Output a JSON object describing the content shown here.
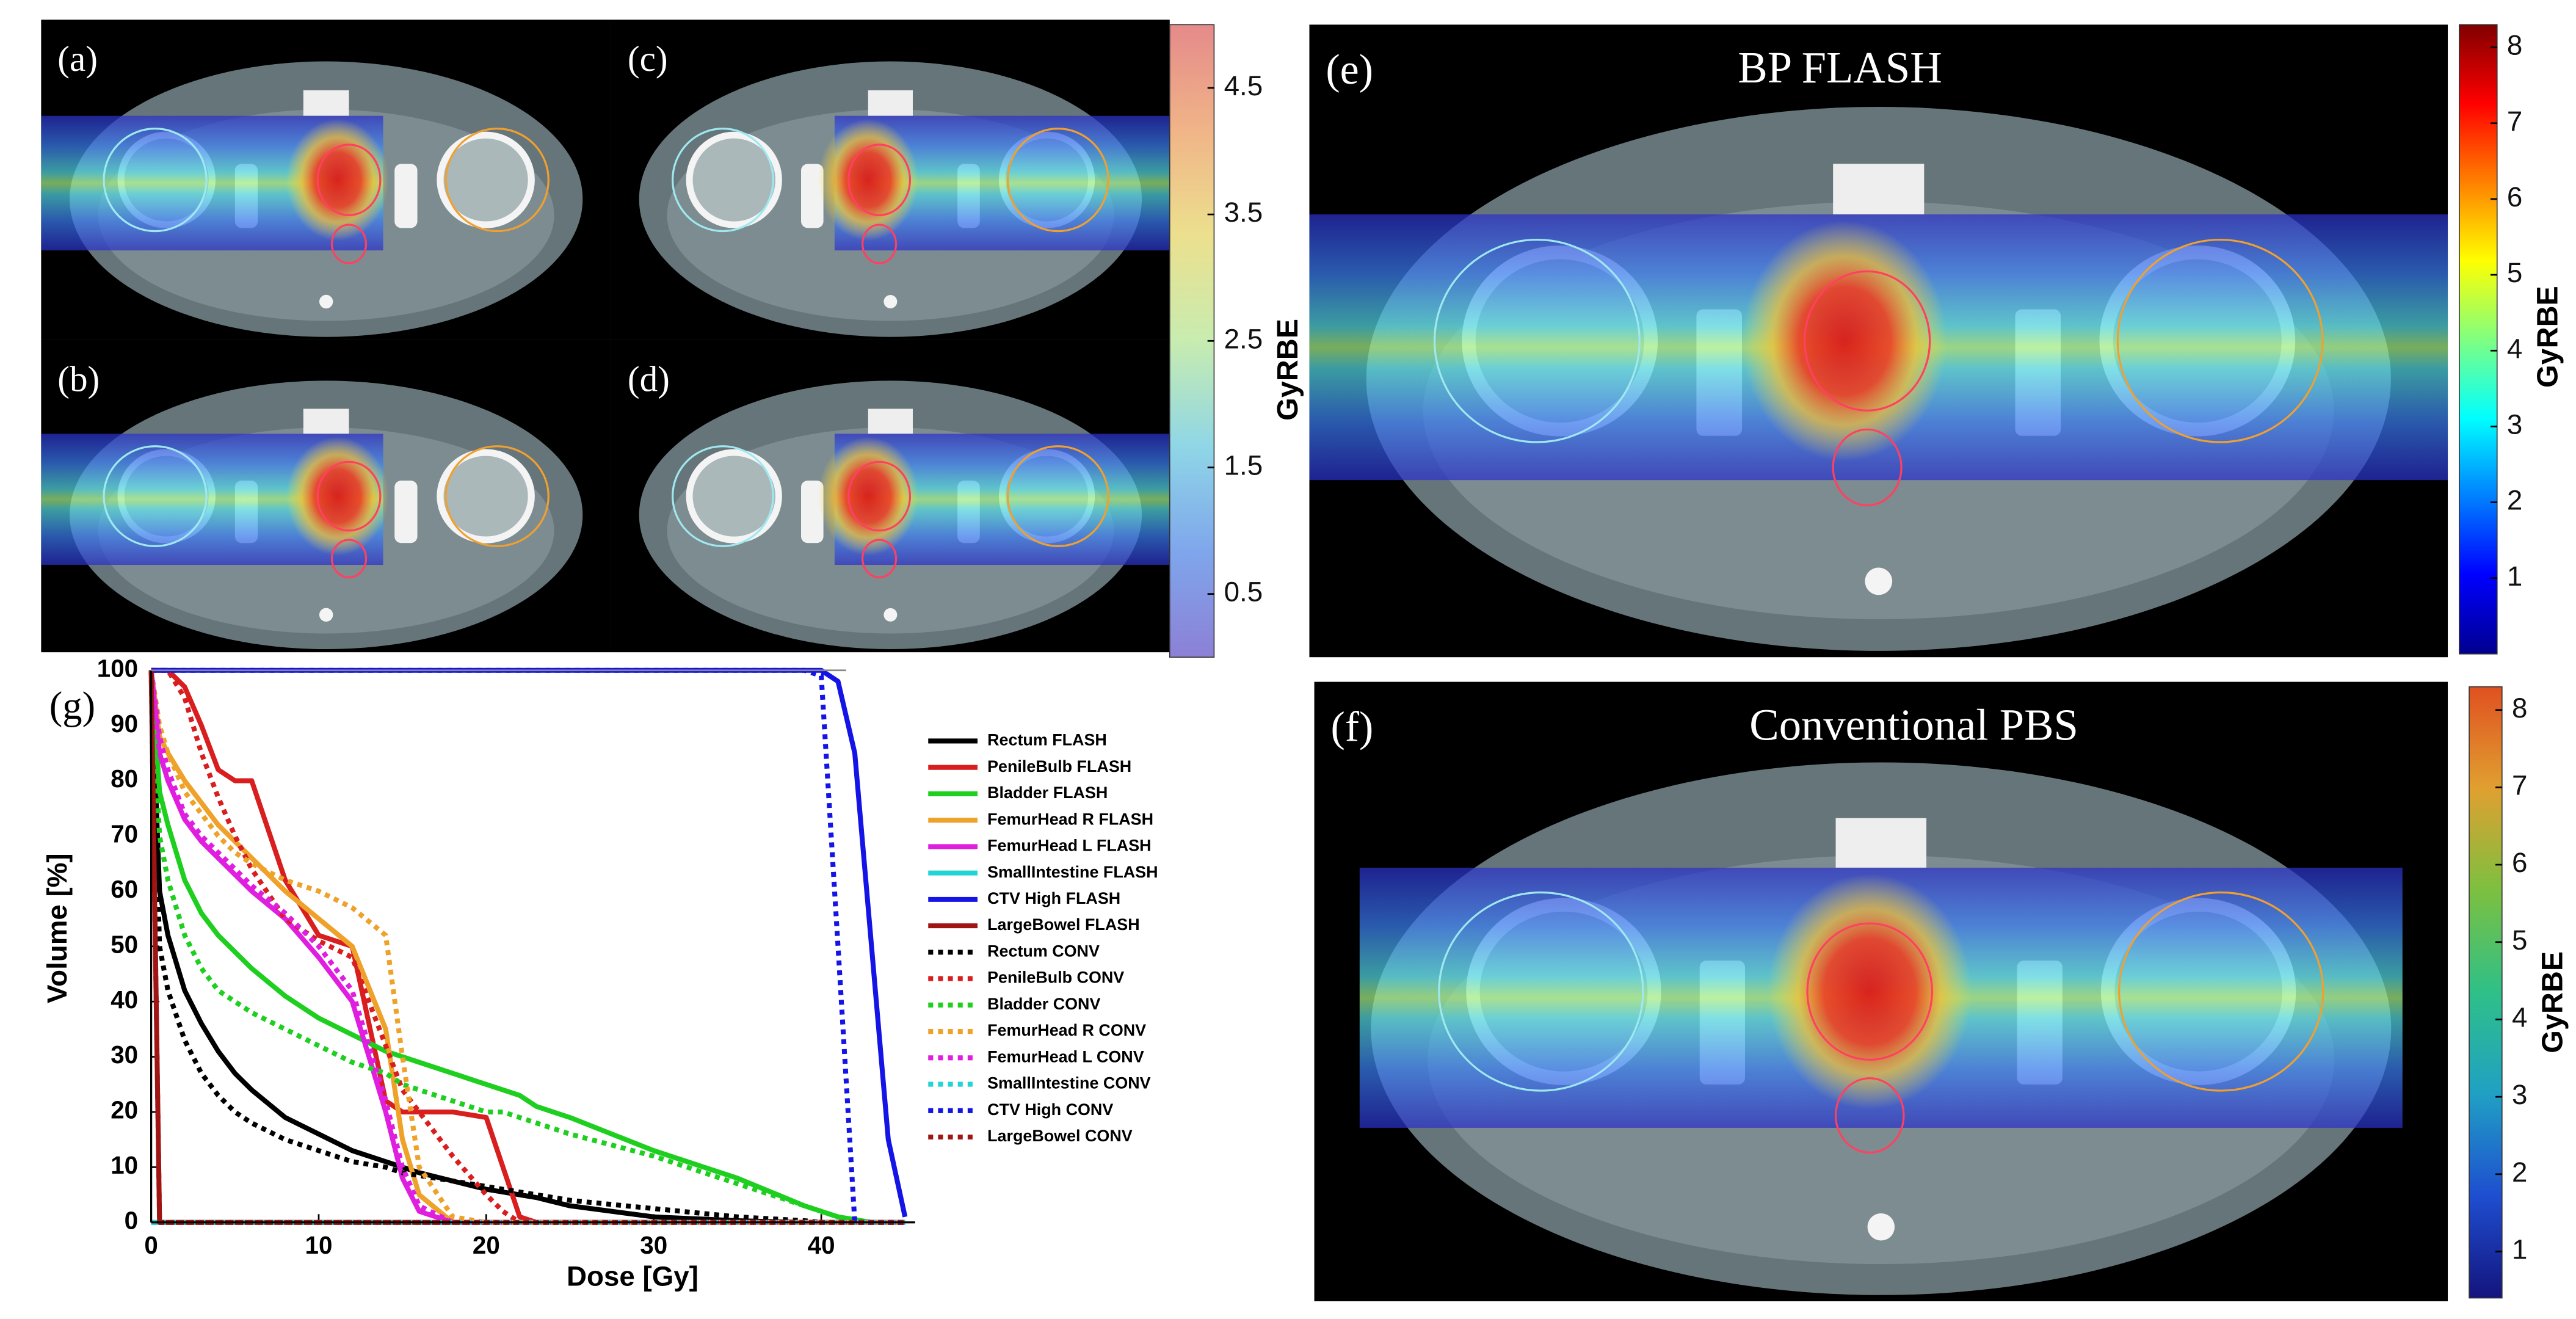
{
  "images": [
    {
      "label": "(a)"
    },
    {
      "label": "(b)"
    },
    {
      "label": "(c)"
    },
    {
      "label": "(d)"
    },
    {
      "label": "(e)",
      "title": "BP FLASH"
    },
    {
      "label": "(f)",
      "title": "Conventional PBS"
    }
  ],
  "chart_data": [
    {
      "type": "line",
      "panel_label": "(g)",
      "xlabel": "Dose [Gy]",
      "ylabel": "Volume [%]",
      "xlim": [
        0,
        45.6
      ],
      "ylim": [
        0,
        100
      ],
      "xticks": [
        0,
        10,
        20,
        30,
        40
      ],
      "yticks": [
        0,
        10,
        20,
        30,
        40,
        50,
        60,
        70,
        80,
        90,
        100
      ],
      "grid": false,
      "legend": "right",
      "x": [
        0,
        0.5,
        1,
        2,
        3,
        4,
        5,
        6,
        8,
        10,
        12,
        14,
        15,
        16,
        18,
        20,
        21,
        22,
        23,
        25,
        30,
        35,
        39,
        40,
        41,
        42,
        43,
        44,
        45
      ],
      "series": [
        {
          "name": "Rectum FLASH",
          "color": "#000000",
          "linestyle": "solid",
          "values": [
            100,
            60,
            52,
            42,
            36,
            31,
            27,
            24,
            19,
            16,
            13,
            11,
            10,
            9,
            7.5,
            6,
            5.5,
            5,
            4.5,
            3,
            1,
            0.3,
            0,
            0,
            0,
            0,
            0,
            0,
            0
          ]
        },
        {
          "name": "PenileBulb FLASH",
          "color": "#d81e1e",
          "linestyle": "solid",
          "values": [
            100,
            100,
            100,
            97,
            90,
            82,
            80,
            80,
            62,
            52,
            50,
            22,
            20,
            20,
            20,
            19,
            10,
            1,
            0,
            0,
            0,
            0,
            0,
            0,
            0,
            0,
            0,
            0,
            0
          ]
        },
        {
          "name": "Bladder FLASH",
          "color": "#1fcf1f",
          "linestyle": "solid",
          "values": [
            100,
            78,
            72,
            62,
            56,
            52,
            49,
            46,
            41,
            37,
            34,
            31,
            30,
            29,
            27,
            25,
            24,
            23,
            21,
            19,
            13,
            8,
            3,
            2,
            1,
            0.5,
            0,
            0,
            0
          ]
        },
        {
          "name": "FemurHead R FLASH",
          "color": "#eea22a",
          "linestyle": "solid",
          "values": [
            100,
            88,
            85,
            80,
            76,
            72,
            69,
            66,
            60,
            55,
            50,
            35,
            15,
            5,
            0,
            0,
            0,
            0,
            0,
            0,
            0,
            0,
            0,
            0,
            0,
            0,
            0,
            0,
            0
          ]
        },
        {
          "name": "FemurHead L FLASH",
          "color": "#e01ee0",
          "linestyle": "solid",
          "values": [
            100,
            85,
            80,
            73,
            69,
            66,
            63,
            60,
            55,
            48,
            40,
            20,
            8,
            2,
            0,
            0,
            0,
            0,
            0,
            0,
            0,
            0,
            0,
            0,
            0,
            0,
            0,
            0,
            0
          ]
        },
        {
          "name": "SmallIntestine FLASH",
          "color": "#22d4d4",
          "linestyle": "solid",
          "values": [
            0,
            0,
            0,
            0,
            0,
            0,
            0,
            0,
            0,
            0,
            0,
            0,
            0,
            0,
            0,
            0,
            0,
            0,
            0,
            0,
            0,
            0,
            0,
            0,
            0,
            0,
            0,
            0,
            0
          ]
        },
        {
          "name": "CTV High FLASH",
          "color": "#1414e6",
          "linestyle": "solid",
          "values": [
            100,
            100,
            100,
            100,
            100,
            100,
            100,
            100,
            100,
            100,
            100,
            100,
            100,
            100,
            100,
            100,
            100,
            100,
            100,
            100,
            100,
            100,
            100,
            100,
            98,
            85,
            50,
            15,
            1
          ]
        },
        {
          "name": "LargeBowel FLASH",
          "color": "#a01414",
          "linestyle": "solid",
          "values": [
            100,
            0,
            0,
            0,
            0,
            0,
            0,
            0,
            0,
            0,
            0,
            0,
            0,
            0,
            0,
            0,
            0,
            0,
            0,
            0,
            0,
            0,
            0,
            0,
            0,
            0,
            0,
            0,
            0
          ]
        },
        {
          "name": "Rectum CONV",
          "color": "#000000",
          "linestyle": "dotted",
          "values": [
            100,
            50,
            42,
            33,
            27,
            23,
            20,
            18,
            15,
            13,
            11,
            10,
            9,
            8.5,
            7.5,
            6.5,
            6,
            5.5,
            5,
            4,
            2.5,
            1,
            0.3,
            0,
            0,
            0,
            0,
            0,
            0
          ]
        },
        {
          "name": "PenileBulb CONV",
          "color": "#d81e1e",
          "linestyle": "dotted",
          "values": [
            100,
            100,
            100,
            95,
            85,
            77,
            70,
            64,
            55,
            51,
            48,
            32,
            24,
            20,
            12,
            5,
            2,
            0,
            0,
            0,
            0,
            0,
            0,
            0,
            0,
            0,
            0,
            0,
            0
          ]
        },
        {
          "name": "Bladder CONV",
          "color": "#1fcf1f",
          "linestyle": "dotted",
          "values": [
            100,
            70,
            62,
            52,
            46,
            42,
            40,
            38,
            35,
            32,
            29,
            27,
            25,
            24,
            22,
            20,
            20,
            19,
            18,
            16,
            12,
            7,
            3,
            2,
            1,
            0.5,
            0,
            0,
            0
          ]
        },
        {
          "name": "FemurHead R CONV",
          "color": "#eea22a",
          "linestyle": "dotted",
          "values": [
            100,
            90,
            85,
            78,
            74,
            70,
            67,
            65,
            62,
            60,
            57,
            52,
            30,
            10,
            1,
            0,
            0,
            0,
            0,
            0,
            0,
            0,
            0,
            0,
            0,
            0,
            0,
            0,
            0
          ]
        },
        {
          "name": "FemurHead L CONV",
          "color": "#e01ee0",
          "linestyle": "dotted",
          "values": [
            100,
            88,
            82,
            74,
            70,
            67,
            64,
            61,
            56,
            50,
            42,
            22,
            10,
            3,
            0,
            0,
            0,
            0,
            0,
            0,
            0,
            0,
            0,
            0,
            0,
            0,
            0,
            0,
            0
          ]
        },
        {
          "name": "SmallIntestine CONV",
          "color": "#22d4d4",
          "linestyle": "dotted",
          "values": [
            0,
            0,
            0,
            0,
            0,
            0,
            0,
            0,
            0,
            0,
            0,
            0,
            0,
            0,
            0,
            0,
            0,
            0,
            0,
            0,
            0,
            0,
            0,
            0,
            0,
            0,
            0,
            0,
            0
          ]
        },
        {
          "name": "CTV High CONV",
          "color": "#1414e6",
          "linestyle": "dotted",
          "values": [
            100,
            100,
            100,
            100,
            100,
            100,
            100,
            100,
            100,
            100,
            100,
            100,
            100,
            100,
            100,
            100,
            100,
            100,
            100,
            100,
            100,
            100,
            100,
            99,
            50,
            0,
            0,
            0,
            0
          ]
        },
        {
          "name": "LargeBowel CONV",
          "color": "#a01414",
          "linestyle": "dotted",
          "values": [
            100,
            0,
            0,
            0,
            0,
            0,
            0,
            0,
            0,
            0,
            0,
            0,
            0,
            0,
            0,
            0,
            0,
            0,
            0,
            0,
            0,
            0,
            0,
            0,
            0,
            0,
            0,
            0,
            0
          ]
        }
      ]
    },
    {
      "type": "colorbar",
      "label": "GyRBE",
      "ylim": [
        0,
        5
      ],
      "yticks": [
        0.5,
        1.5,
        2.5,
        3.5,
        4.5
      ],
      "colors": [
        "#8c80d6",
        "#7fa6ec",
        "#8fd6e6",
        "#c8ecb0",
        "#ece08e",
        "#f0b488",
        "#e58a8a"
      ]
    },
    {
      "type": "colorbar",
      "label": "GyRBE",
      "ylim": [
        0,
        8.3
      ],
      "yticks": [
        1,
        2,
        3,
        4,
        5,
        6,
        7,
        8
      ],
      "colors": [
        "#00008f",
        "#0000ff",
        "#0080ff",
        "#00ffff",
        "#80ff80",
        "#ffff00",
        "#ff8000",
        "#ff0000",
        "#800000"
      ]
    },
    {
      "type": "colorbar",
      "label": "GyRBE",
      "ylim": [
        0.4,
        8.3
      ],
      "yticks": [
        1,
        2,
        3,
        4,
        5,
        6,
        7,
        8
      ],
      "colors": [
        "#14147e",
        "#1e4ed0",
        "#20a0c4",
        "#2ec088",
        "#7cc040",
        "#e0a030",
        "#e05020"
      ]
    }
  ]
}
